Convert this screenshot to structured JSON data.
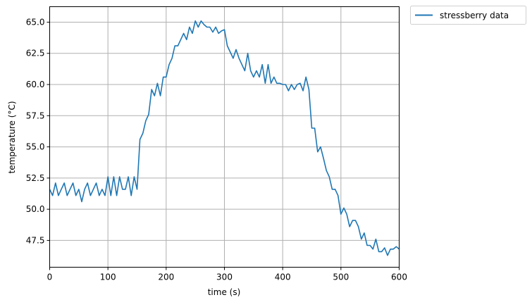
{
  "chart_data": {
    "type": "line",
    "title": "",
    "xlabel": "time (s)",
    "ylabel": "temperature (°C)",
    "xlim": [
      0,
      600
    ],
    "ylim": [
      45.35,
      66.24
    ],
    "xticks": [
      "0",
      "100",
      "200",
      "300",
      "400",
      "500",
      "600"
    ],
    "xtick_values": [
      0,
      100,
      200,
      300,
      400,
      500,
      600
    ],
    "yticks": [
      "47.5",
      "50.0",
      "52.5",
      "55.0",
      "57.5",
      "60.0",
      "62.5",
      "65.0"
    ],
    "ytick_values": [
      47.5,
      50.0,
      52.5,
      55.0,
      57.5,
      60.0,
      62.5,
      65.0
    ],
    "grid": true,
    "legend_placement": "outside-top-right",
    "series": [
      {
        "name": "stressberry data",
        "color": "#1f77b4",
        "x": [
          0,
          5,
          10,
          15,
          20,
          25,
          30,
          35,
          40,
          45,
          50,
          55,
          60,
          65,
          70,
          75,
          80,
          85,
          90,
          95,
          100,
          105,
          110,
          115,
          120,
          125,
          130,
          135,
          140,
          145,
          150,
          155,
          160,
          165,
          170,
          175,
          180,
          185,
          190,
          195,
          200,
          205,
          210,
          215,
          220,
          225,
          230,
          235,
          240,
          245,
          250,
          255,
          260,
          265,
          270,
          275,
          280,
          285,
          290,
          295,
          300,
          305,
          310,
          315,
          320,
          325,
          330,
          335,
          340,
          345,
          350,
          355,
          360,
          365,
          370,
          375,
          380,
          385,
          390,
          395,
          400,
          405,
          410,
          415,
          420,
          425,
          430,
          435,
          440,
          445,
          450,
          455,
          460,
          465,
          470,
          475,
          480,
          485,
          490,
          495,
          500,
          505,
          510,
          515,
          520,
          525,
          530,
          535,
          540,
          545,
          550,
          555,
          560,
          565,
          570,
          575,
          580,
          585,
          590,
          595,
          600
        ],
        "y": [
          51.6,
          51.1,
          52.1,
          51.1,
          51.6,
          52.1,
          51.1,
          51.6,
          52.1,
          51.1,
          51.6,
          50.6,
          51.6,
          52.1,
          51.1,
          51.6,
          52.1,
          51.1,
          51.6,
          51.1,
          52.6,
          51.1,
          52.6,
          51.1,
          52.6,
          51.6,
          51.6,
          52.6,
          51.1,
          52.6,
          51.6,
          55.6,
          56.1,
          57.1,
          57.6,
          59.6,
          59.1,
          60.1,
          59.1,
          60.6,
          60.6,
          61.6,
          62.1,
          63.1,
          63.1,
          63.6,
          64.1,
          63.6,
          64.6,
          64.1,
          65.1,
          64.6,
          65.1,
          64.8,
          64.6,
          64.6,
          64.2,
          64.6,
          64.1,
          64.3,
          64.4,
          63.1,
          62.6,
          62.1,
          62.8,
          62.1,
          61.6,
          61.1,
          62.5,
          61.1,
          60.6,
          61.1,
          60.6,
          61.6,
          60.1,
          61.6,
          60.1,
          60.6,
          60.1,
          60.1,
          60.0,
          60.0,
          59.5,
          60.0,
          59.6,
          60.0,
          60.1,
          59.5,
          60.6,
          59.6,
          56.5,
          56.5,
          54.6,
          55.0,
          54.1,
          53.1,
          52.6,
          51.6,
          51.6,
          51.1,
          49.6,
          50.1,
          49.6,
          48.6,
          49.1,
          49.1,
          48.6,
          47.6,
          48.1,
          47.1,
          47.1,
          46.8,
          47.6,
          46.6,
          46.6,
          46.9,
          46.3,
          46.8,
          46.8,
          47.0,
          46.8
        ]
      }
    ]
  }
}
